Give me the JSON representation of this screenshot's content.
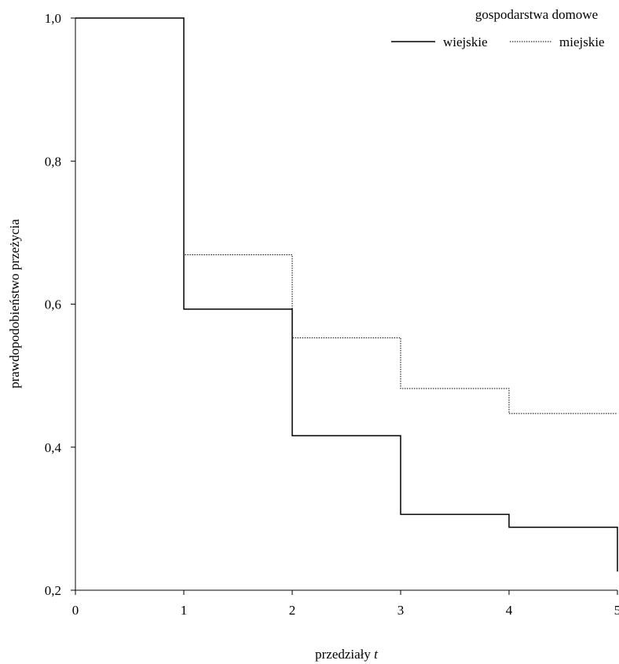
{
  "chart_data": {
    "type": "line",
    "step": true,
    "xlabel": "przedziały",
    "xlabel_var": "t",
    "ylabel": "prawdopodobieństwo przeżycia",
    "xlim": [
      0,
      5
    ],
    "ylim": [
      0.2,
      1.0
    ],
    "xticks": [
      0,
      1,
      2,
      3,
      4,
      5
    ],
    "xtick_labels": [
      "0",
      "1",
      "2",
      "3",
      "4",
      "5"
    ],
    "yticks": [
      0.2,
      0.4,
      0.6,
      0.8,
      1.0
    ],
    "ytick_labels": [
      "0,2",
      "0,4",
      "0,6",
      "0,8",
      "1,0"
    ],
    "grid": false,
    "legend": {
      "title": "gospodarstwa domowe",
      "position": "top-right"
    },
    "series": [
      {
        "name": "wiejskie",
        "style": "solid",
        "x": [
          0,
          1,
          2,
          3,
          4,
          5
        ],
        "y": [
          1.0,
          0.593,
          0.416,
          0.306,
          0.288,
          0.226
        ]
      },
      {
        "name": "miejskie",
        "style": "dotted",
        "x": [
          0,
          1,
          2,
          3,
          4,
          5
        ],
        "y": [
          1.0,
          0.669,
          0.553,
          0.482,
          0.447,
          0.447
        ]
      }
    ]
  }
}
